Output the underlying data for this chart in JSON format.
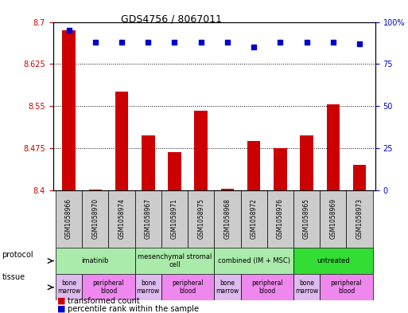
{
  "title": "GDS4756 / 8067011",
  "samples": [
    "GSM1058966",
    "GSM1058970",
    "GSM1058974",
    "GSM1058967",
    "GSM1058971",
    "GSM1058975",
    "GSM1058968",
    "GSM1058972",
    "GSM1058976",
    "GSM1058965",
    "GSM1058969",
    "GSM1058973"
  ],
  "bar_values": [
    8.685,
    8.401,
    8.575,
    8.497,
    8.468,
    8.541,
    8.402,
    8.487,
    8.475,
    8.497,
    8.553,
    8.445
  ],
  "blue_values": [
    95,
    88,
    88,
    88,
    88,
    88,
    88,
    85,
    88,
    88,
    88,
    87
  ],
  "ylim_left": [
    8.4,
    8.7
  ],
  "ylim_right": [
    0,
    100
  ],
  "yticks_left": [
    8.4,
    8.475,
    8.55,
    8.625,
    8.7
  ],
  "yticks_right": [
    0,
    25,
    50,
    75,
    100
  ],
  "ytick_labels_left": [
    "8.4",
    "8.475",
    "8.55",
    "8.625",
    "8.7"
  ],
  "ytick_labels_right": [
    "0",
    "25",
    "50",
    "75",
    "100%"
  ],
  "grid_values": [
    8.475,
    8.55,
    8.625
  ],
  "bar_color": "#cc0000",
  "blue_color": "#0000cc",
  "bg_color": "#ffffff",
  "plot_bg": "#ffffff",
  "protocols": [
    {
      "label": "imatinib",
      "start": 0,
      "end": 3,
      "color": "#aaeaaa"
    },
    {
      "label": "mesenchymal stromal\ncell",
      "start": 3,
      "end": 6,
      "color": "#aaeaaa"
    },
    {
      "label": "combined (IM + MSC)",
      "start": 6,
      "end": 9,
      "color": "#aaeaaa"
    },
    {
      "label": "untreated",
      "start": 9,
      "end": 12,
      "color": "#33dd33"
    }
  ],
  "tissues": [
    {
      "label": "bone\nmarrow",
      "start": 0,
      "end": 1,
      "color": "#ddbbee"
    },
    {
      "label": "peripheral\nblood",
      "start": 1,
      "end": 3,
      "color": "#ee88ee"
    },
    {
      "label": "bone\nmarrow",
      "start": 3,
      "end": 4,
      "color": "#ddbbee"
    },
    {
      "label": "peripheral\nblood",
      "start": 4,
      "end": 6,
      "color": "#ee88ee"
    },
    {
      "label": "bone\nmarrow",
      "start": 6,
      "end": 7,
      "color": "#ddbbee"
    },
    {
      "label": "peripheral\nblood",
      "start": 7,
      "end": 9,
      "color": "#ee88ee"
    },
    {
      "label": "bone\nmarrow",
      "start": 9,
      "end": 10,
      "color": "#ddbbee"
    },
    {
      "label": "peripheral\nblood",
      "start": 10,
      "end": 12,
      "color": "#ee88ee"
    }
  ],
  "legend_red": "transformed count",
  "legend_blue": "percentile rank within the sample",
  "protocol_label": "protocol",
  "tissue_label": "tissue"
}
